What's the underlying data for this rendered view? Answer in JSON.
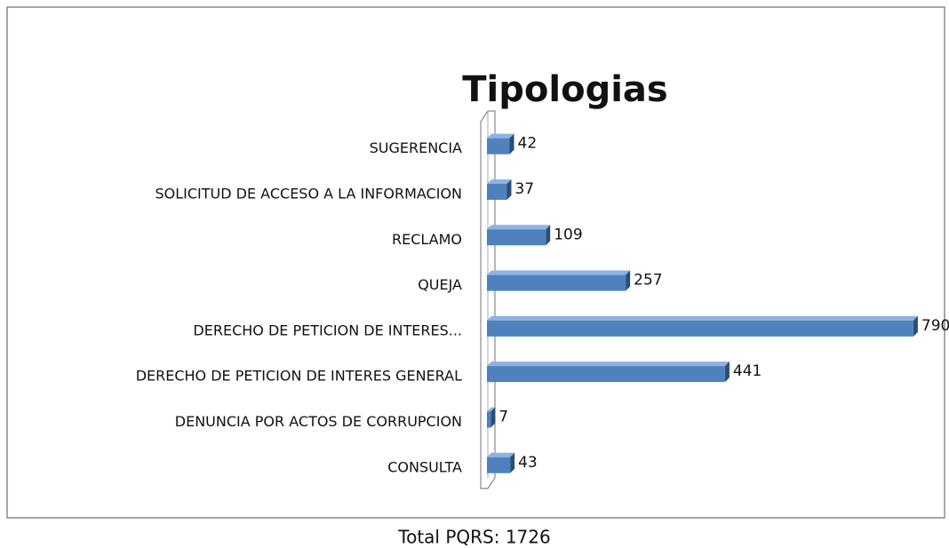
{
  "chart_data": {
    "type": "bar",
    "orientation": "horizontal",
    "title": "Tipologias",
    "categories": [
      "SUGERENCIA",
      "SOLICITUD DE ACCESO A LA INFORMACION",
      "RECLAMO",
      "QUEJA",
      "DERECHO DE PETICION DE INTERES...",
      "DERECHO DE PETICION DE INTERES GENERAL",
      "DENUNCIA POR ACTOS DE CORRUPCION",
      "CONSULTA"
    ],
    "values": [
      42,
      37,
      109,
      257,
      790,
      441,
      7,
      43
    ],
    "color": "#4f81bd",
    "xlim": [
      0,
      800
    ],
    "caption": "Total PQRS: 1726"
  }
}
